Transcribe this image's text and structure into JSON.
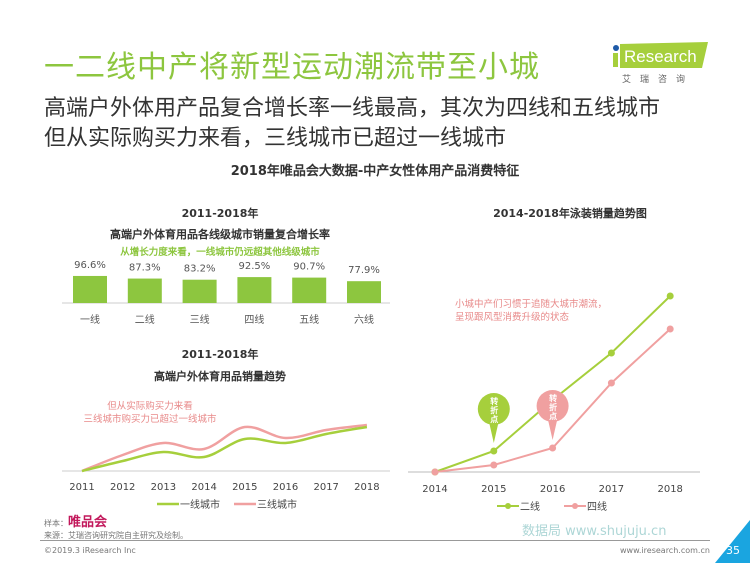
{
  "header": {
    "title": "一二线中产将新型运动潮流带至小城",
    "subtitle_1": "高端户外体用产品复合增长率一线最高，其次为四线和五线城市",
    "subtitle_2": "但从实际购买力来看，三线城市已超过一线城市",
    "section_title": "2018年唯品会大数据-中产女性体用产品消费特征"
  },
  "logo": {
    "text": "iResearch",
    "cn": "艾瑞咨询"
  },
  "colors": {
    "green": "#8dc63f",
    "pink": "#f0a0a0",
    "pink_text": "#e88a8a",
    "brand": "#c2185b"
  },
  "chart_data": [
    {
      "type": "bar",
      "title": "2011-2018年",
      "subtitle": "高端户外体育用品各线级城市销量复合增长率",
      "annotation": "从增长力度来看，一线城市仍远超其他线级城市",
      "categories": [
        "一线",
        "二线",
        "三线",
        "四线",
        "五线",
        "六线"
      ],
      "values": [
        96.6,
        87.3,
        83.2,
        92.5,
        90.7,
        77.9
      ],
      "labels": [
        "96.6%",
        "87.3%",
        "83.2%",
        "92.5%",
        "90.7%",
        "77.9%"
      ],
      "color": "#8dc63f"
    },
    {
      "type": "line",
      "title": "2011-2018年",
      "subtitle": "高端户外体育用品销量趋势",
      "annotation": [
        "但从实际购买力来看",
        "三线城市购买力已超过一线城市"
      ],
      "x": [
        "2011",
        "2012",
        "2013",
        "2014",
        "2015",
        "2016",
        "2017",
        "2018"
      ],
      "series": [
        {
          "name": "一线城市",
          "color": "#a6cf3c",
          "values": [
            0,
            10,
            19,
            14,
            32,
            28,
            37,
            44
          ]
        },
        {
          "name": "三线城市",
          "color": "#f0a0a0",
          "values": [
            0,
            16,
            28,
            22,
            44,
            33,
            41,
            46
          ]
        }
      ]
    },
    {
      "type": "line",
      "title": "2014-2018年泳装销量趋势图",
      "annotation": [
        "小城中产们习惯于追随大城市潮流，",
        "呈现跟风型消费升级的状态"
      ],
      "x": [
        "2014",
        "2015",
        "2016",
        "2017",
        "2018"
      ],
      "series": [
        {
          "name": "二线",
          "color": "#a6cf3c",
          "values": [
            0,
            21,
            72,
            119,
            176
          ]
        },
        {
          "name": "四线",
          "color": "#f0a0a0",
          "values": [
            0,
            7,
            24,
            89,
            143
          ]
        }
      ],
      "callouts": [
        {
          "label": "转折点",
          "series": "二线",
          "x": "2015"
        },
        {
          "label": "转折点",
          "series": "四线",
          "x": "2016"
        }
      ]
    }
  ],
  "footer": {
    "sample_label": "样本：",
    "sample_brand": "唯品会",
    "source": "来源：艾瑞咨询研究院自主研究及绘制。",
    "copyright": "©2019.3 iResearch Inc",
    "website": "www.iresearch.com.cn",
    "page": "35",
    "watermark": "数据局 www.shujuju.cn"
  }
}
